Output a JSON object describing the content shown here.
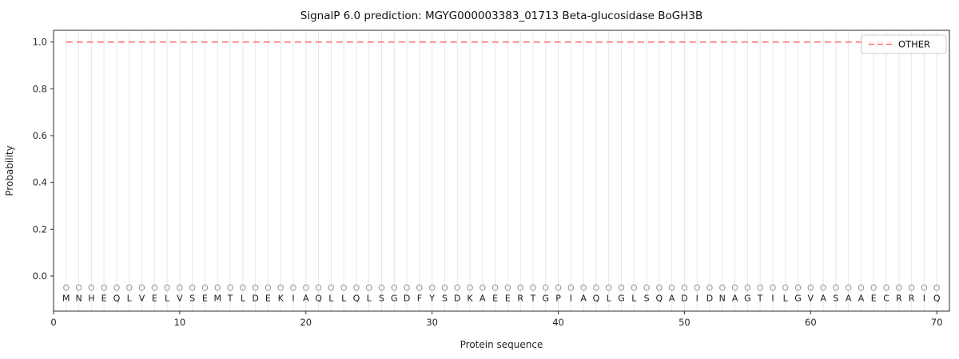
{
  "chart_data": {
    "type": "line",
    "title": "SignalP 6.0 prediction: MGYG000003383_01713 Beta-glucosidase BoGH3B",
    "xlabel": "Protein sequence",
    "ylabel": "Probability",
    "xlim": [
      0,
      71
    ],
    "ylim": [
      -0.15,
      1.05
    ],
    "xticks": [
      0,
      10,
      20,
      30,
      40,
      50,
      60,
      70
    ],
    "yticks": [
      "0.0",
      "0.2",
      "0.4",
      "0.6",
      "0.8",
      "1.0"
    ],
    "grid": "vertical line at every residue position, light gray",
    "legend": {
      "position": "upper right",
      "entries": [
        {
          "label": "OTHER",
          "color": "#f87171",
          "dash": true
        }
      ]
    },
    "series": [
      {
        "name": "OTHER",
        "style": "dashed",
        "color": "#f87171",
        "y_constant": 1.0,
        "x_start": 1,
        "x_end": 70
      }
    ],
    "marker_row_char": "O",
    "marker_row_y": -0.05,
    "sequence_row_y": -0.095,
    "sequence": [
      "M",
      "N",
      "H",
      "E",
      "Q",
      "L",
      "V",
      "E",
      "L",
      "V",
      "S",
      "E",
      "M",
      "T",
      "L",
      "D",
      "E",
      "K",
      "I",
      "A",
      "Q",
      "L",
      "L",
      "Q",
      "L",
      "S",
      "G",
      "D",
      "F",
      "Y",
      "S",
      "D",
      "K",
      "A",
      "E",
      "E",
      "R",
      "T",
      "G",
      "P",
      "I",
      "A",
      "Q",
      "L",
      "G",
      "L",
      "S",
      "Q",
      "A",
      "D",
      "I",
      "D",
      "N",
      "A",
      "G",
      "T",
      "I",
      "L",
      "G",
      "V",
      "A",
      "S",
      "A",
      "A",
      "E",
      "C",
      "R",
      "R",
      "I",
      "Q"
    ],
    "colors": {
      "other_line": "#f87171",
      "grid": "#e7e7e7",
      "spine": "#2b2b2b",
      "tick_text": "#262626",
      "marker": "#9a9a9a",
      "sequence_text": "#1a1a1a",
      "legend_border": "#cccccc",
      "background": "#ffffff"
    }
  }
}
